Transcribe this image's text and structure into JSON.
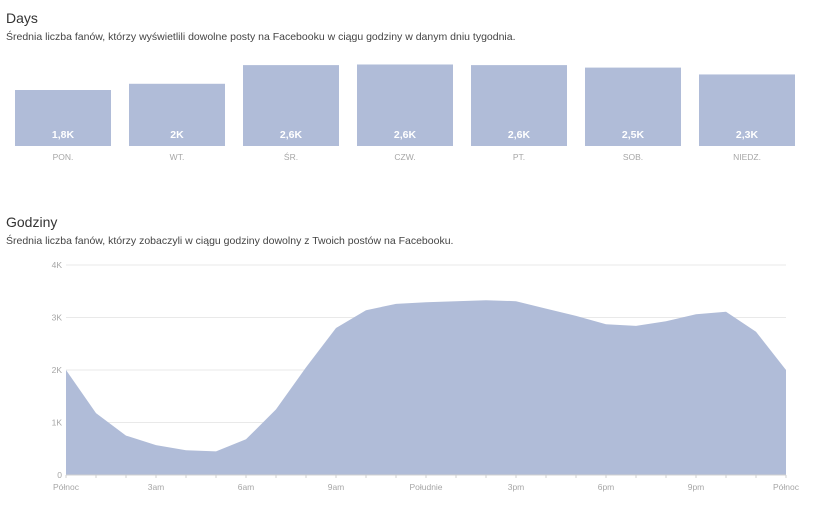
{
  "days_section": {
    "title": "Days",
    "subtitle": "Średnia liczba fanów, którzy wyświetlili dowolne posty na Facebooku w ciągu godziny w danym dniu tygodnia."
  },
  "hours_section": {
    "title": "Godziny",
    "subtitle": "Średnia liczba fanów, którzy zobaczyli w ciągu godziny dowolny z Twoich postów na Facebooku."
  },
  "colors": {
    "bar": "#b0bcd8",
    "area": "#b0bcd8",
    "label": "#a6a6a6"
  },
  "chart_data": [
    {
      "type": "bar",
      "title": "Days",
      "categories": [
        "PON.",
        "WT.",
        "ŚR.",
        "CZW.",
        "PT.",
        "SOB.",
        "NIEDZ."
      ],
      "values": [
        1800,
        2000,
        2600,
        2620,
        2600,
        2520,
        2300
      ],
      "data_labels": [
        "1,8K",
        "2K",
        "2,6K",
        "2,6K",
        "2,6K",
        "2,5K",
        "2,3K"
      ],
      "ylim": [
        0,
        2700
      ]
    },
    {
      "type": "area",
      "title": "Godziny",
      "x": [
        0,
        1,
        2,
        3,
        4,
        5,
        6,
        7,
        8,
        9,
        10,
        11,
        12,
        13,
        14,
        15,
        16,
        17,
        18,
        19,
        20,
        21,
        22,
        23,
        24
      ],
      "values": [
        2000,
        1180,
        750,
        570,
        470,
        450,
        680,
        1250,
        2050,
        2800,
        3140,
        3260,
        3290,
        3310,
        3330,
        3310,
        3170,
        3030,
        2870,
        2840,
        2930,
        3060,
        3110,
        2730,
        2000
      ],
      "x_ticks": [
        "Północ",
        "3am",
        "6am",
        "9am",
        "Południe",
        "3pm",
        "6pm",
        "9pm",
        "Północ"
      ],
      "x_tick_values": [
        0,
        3,
        6,
        9,
        12,
        15,
        18,
        21,
        24
      ],
      "y_ticks": [
        "0",
        "1K",
        "2K",
        "3K",
        "4K"
      ],
      "y_tick_values": [
        0,
        1000,
        2000,
        3000,
        4000
      ],
      "ylim": [
        0,
        4000
      ],
      "grid": true
    }
  ]
}
